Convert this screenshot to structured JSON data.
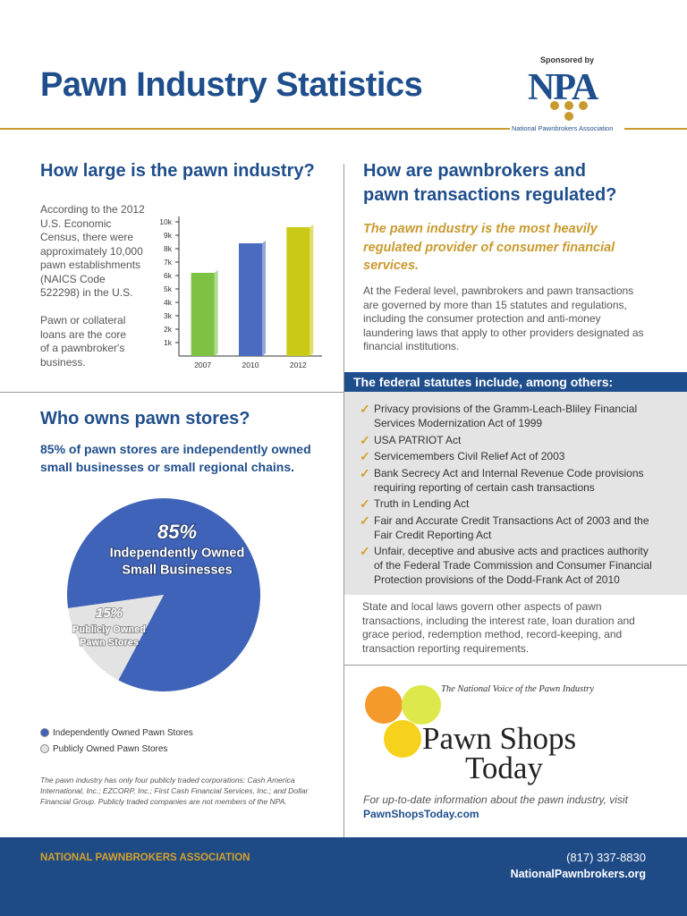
{
  "header": {
    "title": "Pawn Industry Statistics",
    "sponsor_label": "Sponsored by",
    "logo_text": "NPA",
    "logo_caption": "National Pawnbrokers Association"
  },
  "size_section": {
    "heading": "How large is the pawn industry?",
    "paragraphs": [
      "According to the 2012 U.S. Economic Census, there were approximately 10,000 pawn establishments (NAICS Code 522298) in the U.S.",
      "Pawn or collateral loans are the core of a pawnbroker's business."
    ]
  },
  "ownership_section": {
    "heading": "Who owns pawn stores?",
    "summary": "85% of pawn stores are independently owned small businesses or small regional chains.",
    "footnote": "The pawn industry has only four publicly traded corporations: Cash America International, Inc.; EZCORP, Inc.; First Cash Financial Services, Inc.; and Dollar Financial Group. Publicly traded companies are not members of the NPA."
  },
  "regulation_section": {
    "heading": "How are pawnbrokers and pawn transactions regulated?",
    "highlight": "The pawn industry is the most heavily regulated provider of consumer financial services.",
    "body": "At the Federal level, pawnbrokers and pawn transactions are governed by more than 15 statutes and regulations, including the consumer protection and anti-money laundering laws that apply to other providers designated as financial institutions.",
    "statutes_heading": "The federal statutes include, among others:",
    "statutes": [
      "Privacy provisions of the Gramm-Leach-Bliley Financial Services Modernization Act of 1999",
      "USA PATRIOT Act",
      "Servicemembers Civil Relief Act of 2003",
      "Bank Secrecy Act and Internal Revenue Code provisions requiring reporting of certain cash transactions",
      "Truth in Lending Act",
      "Fair and Accurate Credit Transactions Act of 2003 and the Fair Credit Reporting Act",
      "Unfair, deceptive and abusive acts and practices authority of the Federal Trade Commission and Consumer Financial Protection provisions of the Dodd-Frank Act of 2010"
    ],
    "closing": "State and local laws govern other aspects of pawn transactions, including the interest rate, loan duration and grace period, redemption method, record-keeping, and transaction reporting requirements."
  },
  "promo": {
    "tagline": "The National Voice of the Pawn Industry",
    "brand_line1": "Pawn Shops",
    "brand_line2": "Today",
    "text": "For up-to-date information about the pawn industry, visit",
    "link": "PawnShopsToday.com"
  },
  "footer": {
    "organization": "NATIONAL PAWNBROKERS ASSOCIATION",
    "phone": "(817) 337-8830",
    "website": "NationalPawnbrokers.org"
  },
  "chart_data": [
    {
      "type": "bar",
      "categories": [
        "2007",
        "2010",
        "2012"
      ],
      "values": [
        6200,
        8400,
        9600
      ],
      "colors": [
        "#7dc242",
        "#4a6bbf",
        "#c9c916"
      ],
      "ylim": [
        0,
        10300
      ],
      "yticks": [
        {
          "value": 1000,
          "label": "1k"
        },
        {
          "value": 2000,
          "label": "2k"
        },
        {
          "value": 3000,
          "label": "3k"
        },
        {
          "value": 4000,
          "label": "4k"
        },
        {
          "value": 5000,
          "label": "5k"
        },
        {
          "value": 6000,
          "label": "6k"
        },
        {
          "value": 7000,
          "label": "7k"
        },
        {
          "value": 8000,
          "label": "8k"
        },
        {
          "value": 9000,
          "label": "9k"
        },
        {
          "value": 10000,
          "label": "10k"
        }
      ]
    },
    {
      "type": "pie",
      "categories": [
        "Independently Owned Pawn Stores",
        "Publicly Owned Pawn Stores"
      ],
      "values": [
        85,
        15
      ],
      "value_labels": [
        "85%",
        "15%"
      ],
      "slice_labels": [
        "Independently Owned Small Businesses",
        "Publicly Owned Pawn Stores"
      ],
      "colors": [
        "#3f63b8",
        "#e3e3e3"
      ]
    }
  ]
}
